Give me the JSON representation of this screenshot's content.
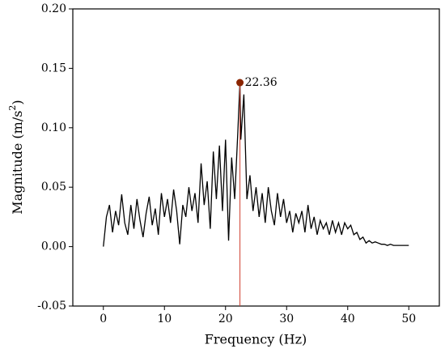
{
  "chart_data": {
    "type": "line",
    "xlabel": "Frequency (Hz)",
    "ylabel": {
      "text": "Magnitude (m/s",
      "sup": "2",
      "end": ")"
    },
    "x": [
      0,
      0.5,
      1,
      1.5,
      2,
      2.5,
      3,
      3.5,
      4,
      4.5,
      5,
      5.5,
      6,
      6.5,
      7,
      7.5,
      8,
      8.5,
      9,
      9.5,
      10,
      10.5,
      11,
      11.5,
      12,
      12.5,
      13,
      13.5,
      14,
      14.5,
      15,
      15.5,
      16,
      16.5,
      17,
      17.5,
      18,
      18.5,
      19,
      19.5,
      20,
      20.5,
      21,
      21.5,
      22,
      22.36,
      22.5,
      23,
      23.5,
      24,
      24.5,
      25,
      25.5,
      26,
      26.5,
      27,
      27.5,
      28,
      28.5,
      29,
      29.5,
      30,
      30.5,
      31,
      31.5,
      32,
      32.5,
      33,
      33.5,
      34,
      34.5,
      35,
      35.5,
      36,
      36.5,
      37,
      37.5,
      38,
      38.5,
      39,
      39.5,
      40,
      40.5,
      41,
      41.5,
      42,
      42.5,
      43,
      43.5,
      44,
      44.5,
      45,
      45.5,
      46,
      46.5,
      47,
      47.5,
      48,
      48.5,
      49,
      49.5,
      50
    ],
    "series": [
      {
        "color": "#000000",
        "values": [
          0,
          0.025,
          0.035,
          0.012,
          0.03,
          0.018,
          0.044,
          0.02,
          0.01,
          0.035,
          0.015,
          0.04,
          0.022,
          0.008,
          0.028,
          0.042,
          0.018,
          0.032,
          0.01,
          0.045,
          0.025,
          0.04,
          0.02,
          0.048,
          0.03,
          0.002,
          0.035,
          0.025,
          0.05,
          0.03,
          0.045,
          0.02,
          0.07,
          0.035,
          0.055,
          0.015,
          0.08,
          0.04,
          0.085,
          0.03,
          0.09,
          0.005,
          0.075,
          0.04,
          0.095,
          0.138,
          0.09,
          0.128,
          0.04,
          0.06,
          0.03,
          0.05,
          0.025,
          0.045,
          0.02,
          0.05,
          0.03,
          0.018,
          0.045,
          0.025,
          0.04,
          0.02,
          0.03,
          0.012,
          0.028,
          0.02,
          0.03,
          0.012,
          0.035,
          0.015,
          0.025,
          0.01,
          0.022,
          0.015,
          0.02,
          0.01,
          0.022,
          0.012,
          0.02,
          0.01,
          0.02,
          0.015,
          0.018,
          0.01,
          0.012,
          0.006,
          0.008,
          0.003,
          0.005,
          0.003,
          0.004,
          0.003,
          0.002,
          0.002,
          0.001,
          0.002,
          0.001,
          0.001,
          0.001,
          0.001,
          0.001,
          0.001
        ]
      }
    ],
    "annotation": {
      "x": 22.36,
      "y": 0.138,
      "color": "#8b2500",
      "line_color": "#d04030"
    },
    "xlim": [
      -5,
      55
    ],
    "xticks": [
      0,
      10,
      20,
      30,
      40,
      50
    ],
    "ylim": [
      -0.05,
      0.2
    ],
    "yticks": [
      {
        "value": -0.05,
        "label": "-0.05"
      },
      {
        "value": 0,
        "label": "0.00"
      },
      {
        "value": 0.05,
        "label": "0.05"
      },
      {
        "value": 0.1,
        "label": "0.10"
      },
      {
        "value": 0.15,
        "label": "0.15"
      },
      {
        "value": 0.2,
        "label": "0.20"
      }
    ]
  }
}
